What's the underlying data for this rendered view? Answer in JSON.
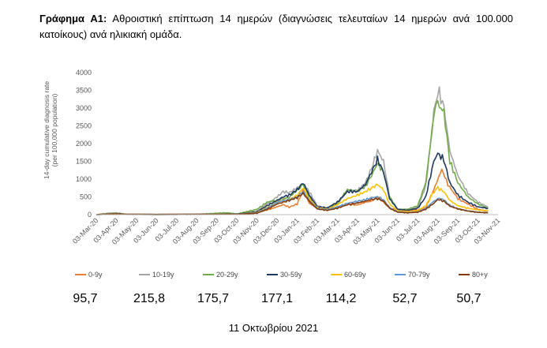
{
  "title": {
    "bold": "Γράφημα Α1:",
    "text": " Αθροιστική επίπτωση 14 ημερών (διαγνώσεις τελευταίων 14 ημερών ανά 100.000 κατοίκους) ανά ηλικιακή ομάδα."
  },
  "chart_data": {
    "type": "line",
    "ylabel_line1": "14-day cumulative diagnosis rate",
    "ylabel_line2": "(per 100,000 population)",
    "ylim": [
      0,
      4000
    ],
    "yticks": [
      "0",
      "500",
      "1000",
      "1500",
      "2000",
      "2500",
      "3000",
      "3500",
      "4000"
    ],
    "xlim": [
      0,
      20
    ],
    "x_tick_labels": [
      "03-Mar-20",
      "03-Apr-20",
      "03-May-20",
      "03-Jun-20",
      "03-Jul-20",
      "03-Aug-20",
      "03-Sep-20",
      "03-Oct-20",
      "03-Nov-20",
      "03-Dec-20",
      "03-Jan-21",
      "03-Feb-21",
      "03-Mar-21",
      "03-Apr-21",
      "03-May-21",
      "03-Jun-21",
      "03-Jul-21",
      "03-Aug-21",
      "03-Sep-21",
      "03-Oct-21",
      "03-Nov-21"
    ],
    "grid": false,
    "legend_position": "bottom",
    "series": [
      {
        "name": "0-9y",
        "color": "#ed7d31",
        "points": [
          [
            0,
            0
          ],
          [
            0.6,
            30
          ],
          [
            1,
            40
          ],
          [
            1.5,
            10
          ],
          [
            3,
            5
          ],
          [
            5,
            10
          ],
          [
            6,
            20
          ],
          [
            6.5,
            25
          ],
          [
            7,
            15
          ],
          [
            8,
            60
          ],
          [
            8.5,
            130
          ],
          [
            9,
            220
          ],
          [
            9.3,
            280
          ],
          [
            9.6,
            210
          ],
          [
            10,
            300
          ],
          [
            10.3,
            700
          ],
          [
            10.6,
            320
          ],
          [
            11,
            180
          ],
          [
            11.5,
            130
          ],
          [
            12,
            200
          ],
          [
            12.5,
            290
          ],
          [
            13,
            270
          ],
          [
            13.4,
            350
          ],
          [
            13.7,
            380
          ],
          [
            14,
            500
          ],
          [
            14.3,
            350
          ],
          [
            14.6,
            180
          ],
          [
            15,
            130
          ],
          [
            15.5,
            120
          ],
          [
            16,
            130
          ],
          [
            16.4,
            200
          ],
          [
            16.8,
            700
          ],
          [
            17.2,
            1280
          ],
          [
            17.5,
            850
          ],
          [
            18,
            450
          ],
          [
            18.5,
            300
          ],
          [
            19,
            150
          ],
          [
            19.5,
            96
          ]
        ]
      },
      {
        "name": "10-19y",
        "color": "#a5a5a5",
        "points": [
          [
            0,
            0
          ],
          [
            0.6,
            40
          ],
          [
            1,
            50
          ],
          [
            1.5,
            10
          ],
          [
            3,
            5
          ],
          [
            5,
            10
          ],
          [
            6,
            20
          ],
          [
            6.5,
            25
          ],
          [
            7,
            20
          ],
          [
            8,
            100
          ],
          [
            8.5,
            300
          ],
          [
            9,
            500
          ],
          [
            9.3,
            650
          ],
          [
            9.6,
            620
          ],
          [
            10,
            750
          ],
          [
            10.3,
            850
          ],
          [
            10.6,
            650
          ],
          [
            11,
            250
          ],
          [
            11.5,
            180
          ],
          [
            12,
            280
          ],
          [
            12.5,
            700
          ],
          [
            13,
            680
          ],
          [
            13.4,
            900
          ],
          [
            13.7,
            1300
          ],
          [
            14,
            1800
          ],
          [
            14.3,
            1500
          ],
          [
            14.6,
            500
          ],
          [
            15,
            150
          ],
          [
            15.5,
            150
          ],
          [
            16,
            200
          ],
          [
            16.4,
            800
          ],
          [
            16.8,
            2800
          ],
          [
            17,
            3500
          ],
          [
            17.3,
            3050
          ],
          [
            17.6,
            1800
          ],
          [
            18,
            1100
          ],
          [
            18.5,
            600
          ],
          [
            19,
            350
          ],
          [
            19.5,
            216
          ]
        ]
      },
      {
        "name": "20-29y",
        "color": "#70ad47",
        "points": [
          [
            0,
            0
          ],
          [
            0.6,
            30
          ],
          [
            1,
            40
          ],
          [
            1.5,
            10
          ],
          [
            3,
            5
          ],
          [
            5,
            10
          ],
          [
            6,
            40
          ],
          [
            6.5,
            55
          ],
          [
            7,
            20
          ],
          [
            8,
            150
          ],
          [
            8.5,
            350
          ],
          [
            9,
            400
          ],
          [
            9.3,
            450
          ],
          [
            9.6,
            480
          ],
          [
            10,
            700
          ],
          [
            10.3,
            850
          ],
          [
            10.6,
            500
          ],
          [
            11,
            200
          ],
          [
            11.5,
            180
          ],
          [
            12,
            320
          ],
          [
            12.5,
            700
          ],
          [
            13,
            650
          ],
          [
            13.4,
            800
          ],
          [
            13.7,
            1100
          ],
          [
            14,
            1450
          ],
          [
            14.3,
            1200
          ],
          [
            14.6,
            500
          ],
          [
            15,
            150
          ],
          [
            15.5,
            150
          ],
          [
            16,
            250
          ],
          [
            16.4,
            900
          ],
          [
            16.8,
            2800
          ],
          [
            17,
            3100
          ],
          [
            17.3,
            2900
          ],
          [
            17.6,
            1500
          ],
          [
            18,
            900
          ],
          [
            18.5,
            500
          ],
          [
            19,
            300
          ],
          [
            19.5,
            176
          ]
        ]
      },
      {
        "name": "30-59y",
        "color": "#1f3864",
        "points": [
          [
            0,
            0
          ],
          [
            0.6,
            20
          ],
          [
            1,
            30
          ],
          [
            1.5,
            10
          ],
          [
            3,
            5
          ],
          [
            5,
            10
          ],
          [
            6,
            15
          ],
          [
            6.5,
            20
          ],
          [
            7,
            15
          ],
          [
            8,
            80
          ],
          [
            8.5,
            250
          ],
          [
            9,
            400
          ],
          [
            9.3,
            500
          ],
          [
            9.6,
            550
          ],
          [
            10,
            700
          ],
          [
            10.3,
            900
          ],
          [
            10.6,
            550
          ],
          [
            11,
            220
          ],
          [
            11.5,
            190
          ],
          [
            12,
            350
          ],
          [
            12.5,
            650
          ],
          [
            13,
            650
          ],
          [
            13.4,
            850
          ],
          [
            13.7,
            1200
          ],
          [
            14,
            1550
          ],
          [
            14.3,
            1200
          ],
          [
            14.6,
            450
          ],
          [
            15,
            150
          ],
          [
            15.5,
            120
          ],
          [
            16,
            180
          ],
          [
            16.4,
            500
          ],
          [
            16.8,
            1500
          ],
          [
            17,
            1720
          ],
          [
            17.3,
            1550
          ],
          [
            17.6,
            900
          ],
          [
            18,
            550
          ],
          [
            18.5,
            350
          ],
          [
            19,
            220
          ],
          [
            19.5,
            177
          ]
        ]
      },
      {
        "name": "60-69y",
        "color": "#ffc000",
        "points": [
          [
            0,
            0
          ],
          [
            0.6,
            20
          ],
          [
            1,
            25
          ],
          [
            1.5,
            10
          ],
          [
            3,
            5
          ],
          [
            5,
            10
          ],
          [
            6,
            15
          ],
          [
            6.5,
            18
          ],
          [
            7,
            10
          ],
          [
            8,
            60
          ],
          [
            8.5,
            200
          ],
          [
            9,
            350
          ],
          [
            9.3,
            400
          ],
          [
            9.6,
            420
          ],
          [
            10,
            550
          ],
          [
            10.3,
            750
          ],
          [
            10.6,
            450
          ],
          [
            11,
            200
          ],
          [
            11.5,
            150
          ],
          [
            12,
            280
          ],
          [
            12.5,
            450
          ],
          [
            13,
            550
          ],
          [
            13.4,
            650
          ],
          [
            13.7,
            750
          ],
          [
            14,
            850
          ],
          [
            14.3,
            700
          ],
          [
            14.6,
            300
          ],
          [
            15,
            110
          ],
          [
            15.5,
            90
          ],
          [
            16,
            110
          ],
          [
            16.4,
            250
          ],
          [
            16.8,
            650
          ],
          [
            17,
            750
          ],
          [
            17.3,
            650
          ],
          [
            17.6,
            400
          ],
          [
            18,
            250
          ],
          [
            18.5,
            180
          ],
          [
            19,
            130
          ],
          [
            19.5,
            114
          ]
        ]
      },
      {
        "name": "70-79y",
        "color": "#5b9bd5",
        "points": [
          [
            0,
            0
          ],
          [
            0.6,
            15
          ],
          [
            1,
            20
          ],
          [
            1.5,
            8
          ],
          [
            3,
            5
          ],
          [
            5,
            8
          ],
          [
            6,
            12
          ],
          [
            6.5,
            15
          ],
          [
            7,
            10
          ],
          [
            8,
            50
          ],
          [
            8.5,
            180
          ],
          [
            9,
            350
          ],
          [
            9.3,
            400
          ],
          [
            9.6,
            420
          ],
          [
            10,
            500
          ],
          [
            10.3,
            650
          ],
          [
            10.6,
            400
          ],
          [
            11,
            180
          ],
          [
            11.5,
            140
          ],
          [
            12,
            220
          ],
          [
            12.5,
            320
          ],
          [
            13,
            380
          ],
          [
            13.4,
            420
          ],
          [
            13.7,
            480
          ],
          [
            14,
            500
          ],
          [
            14.3,
            420
          ],
          [
            14.6,
            200
          ],
          [
            15,
            80
          ],
          [
            15.5,
            60
          ],
          [
            16,
            80
          ],
          [
            16.4,
            180
          ],
          [
            16.8,
            380
          ],
          [
            17,
            470
          ],
          [
            17.3,
            420
          ],
          [
            17.6,
            260
          ],
          [
            18,
            170
          ],
          [
            18.5,
            110
          ],
          [
            19,
            70
          ],
          [
            19.5,
            53
          ]
        ]
      },
      {
        "name": "80+y",
        "color": "#843c0c",
        "points": [
          [
            0,
            0
          ],
          [
            0.6,
            15
          ],
          [
            1,
            20
          ],
          [
            1.5,
            8
          ],
          [
            3,
            5
          ],
          [
            5,
            8
          ],
          [
            6,
            10
          ],
          [
            6.5,
            12
          ],
          [
            7,
            10
          ],
          [
            8,
            40
          ],
          [
            8.5,
            150
          ],
          [
            9,
            300
          ],
          [
            9.3,
            350
          ],
          [
            9.6,
            400
          ],
          [
            10,
            480
          ],
          [
            10.3,
            600
          ],
          [
            10.6,
            380
          ],
          [
            11,
            160
          ],
          [
            11.5,
            120
          ],
          [
            12,
            180
          ],
          [
            12.5,
            280
          ],
          [
            13,
            330
          ],
          [
            13.4,
            380
          ],
          [
            13.7,
            430
          ],
          [
            14,
            450
          ],
          [
            14.3,
            380
          ],
          [
            14.6,
            180
          ],
          [
            15,
            70
          ],
          [
            15.5,
            50
          ],
          [
            16,
            70
          ],
          [
            16.4,
            150
          ],
          [
            16.8,
            320
          ],
          [
            17,
            430
          ],
          [
            17.3,
            380
          ],
          [
            17.6,
            240
          ],
          [
            18,
            160
          ],
          [
            18.5,
            100
          ],
          [
            19,
            65
          ],
          [
            19.5,
            51
          ]
        ]
      }
    ]
  },
  "values": [
    "95,7",
    "215,8",
    "175,7",
    "177,1",
    "114,2",
    "52,7",
    "50,7"
  ],
  "date": "11 Οκτωβρίου 2021"
}
